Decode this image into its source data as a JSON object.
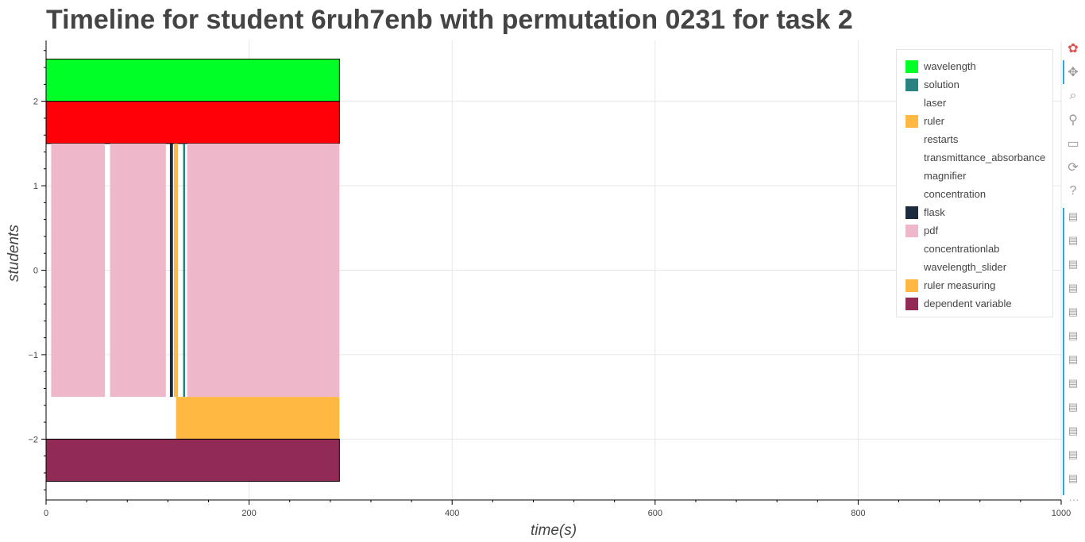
{
  "title": "Timeline for student 6ruh7enb with permutation 0231 for task 2",
  "chart_data": {
    "type": "timeline",
    "title": "Timeline for student 6ruh7enb with permutation 0231 for task 2",
    "xlabel": "time(s)",
    "ylabel": "students",
    "xlim": [
      0,
      1000
    ],
    "ylim": [
      -2.72,
      2.72
    ],
    "xticks": [
      0,
      200,
      400,
      600,
      800,
      1000
    ],
    "yticks": [
      -2,
      -1,
      0,
      1,
      2
    ],
    "grid": true,
    "legend_position": "top-right",
    "legend": [
      {
        "name": "wavelength",
        "color": "#00ff26"
      },
      {
        "name": "solution",
        "color": "#2a8181"
      },
      {
        "name": "laser",
        "color": ""
      },
      {
        "name": "ruler",
        "color": "#ffb942"
      },
      {
        "name": "restarts",
        "color": ""
      },
      {
        "name": "transmittance_absorbance",
        "color": ""
      },
      {
        "name": "magnifier",
        "color": ""
      },
      {
        "name": "concentration",
        "color": ""
      },
      {
        "name": "flask",
        "color": "#1c2a3d"
      },
      {
        "name": "pdf",
        "color": "#eeb8ca"
      },
      {
        "name": "concentrationlab",
        "color": ""
      },
      {
        "name": "wavelength_slider",
        "color": ""
      },
      {
        "name": "ruler measuring",
        "color": "#ffb942"
      },
      {
        "name": "dependent variable",
        "color": "#912b55"
      }
    ],
    "bars": [
      {
        "series": "wavelength",
        "x0": 0,
        "x1": 289,
        "y0": 2.0,
        "y1": 2.5,
        "color": "#00ff26",
        "stroke": true
      },
      {
        "series": "red band",
        "x0": 0,
        "x1": 289,
        "y0": 1.5,
        "y1": 2.0,
        "color": "#ff0008",
        "stroke": true
      },
      {
        "series": "pdf",
        "x0": 5,
        "x1": 58,
        "y0": -1.5,
        "y1": 1.5,
        "color": "#eeb8ca"
      },
      {
        "series": "pdf",
        "x0": 63,
        "x1": 118,
        "y0": -1.5,
        "y1": 1.5,
        "color": "#eeb8ca"
      },
      {
        "series": "flask",
        "x0": 122,
        "x1": 125,
        "y0": -1.5,
        "y1": 1.5,
        "color": "#1c2a3d"
      },
      {
        "series": "ruler",
        "x0": 126,
        "x1": 130,
        "y0": -1.5,
        "y1": 1.5,
        "color": "#ffb942"
      },
      {
        "series": "solution",
        "x0": 135,
        "x1": 137,
        "y0": -1.5,
        "y1": 1.5,
        "color": "#2a8181"
      },
      {
        "series": "pdf",
        "x0": 139,
        "x1": 289,
        "y0": -1.5,
        "y1": 1.5,
        "color": "#eeb8ca"
      },
      {
        "series": "ruler measuring",
        "x0": 128,
        "x1": 289,
        "y0": -2.0,
        "y1": -1.5,
        "color": "#ffb942"
      },
      {
        "series": "dependent variable",
        "x0": 0,
        "x1": 289,
        "y0": -2.5,
        "y1": -2.0,
        "color": "#912b55",
        "stroke": true
      }
    ]
  },
  "toolbar": {
    "tools": [
      {
        "name": "bokeh-logo-icon",
        "glyph": "✿"
      },
      {
        "name": "pan-icon",
        "glyph": "✥"
      },
      {
        "name": "box-zoom-icon",
        "glyph": "⌕"
      },
      {
        "name": "wheel-zoom-icon",
        "glyph": "⚲"
      },
      {
        "name": "save-icon",
        "glyph": "▭"
      },
      {
        "name": "reset-icon",
        "glyph": "⟳"
      },
      {
        "name": "help-icon",
        "glyph": "?"
      }
    ],
    "hover_tool_count": 12,
    "hover_glyph": "▤",
    "more_glyph": "..."
  }
}
